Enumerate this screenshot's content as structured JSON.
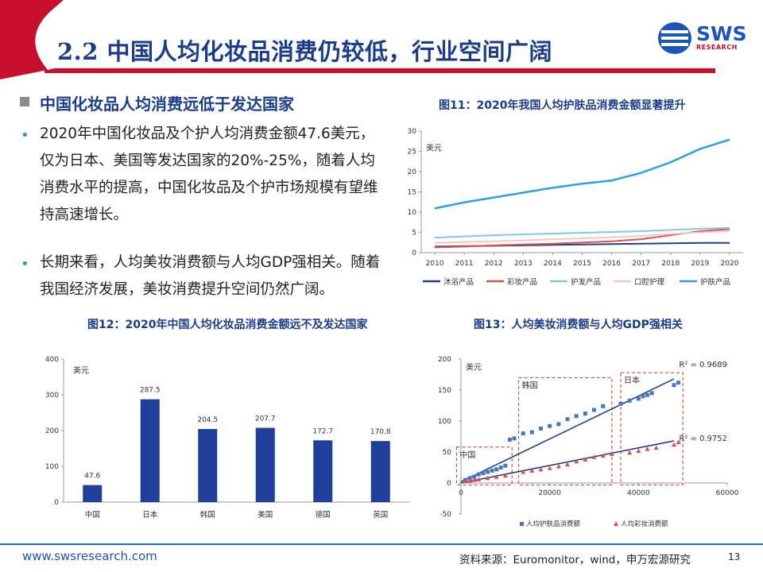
{
  "header": {
    "title": "2.2 中国人均化妆品消费仍较低，行业空间广阔",
    "logo_text": "SWS",
    "logo_sub": "RESEARCH",
    "brand_red": "#c8102e",
    "brand_blue": "#1a56b8"
  },
  "section": {
    "heading": "中国化妆品人均消费远低于发达国家",
    "bullets": [
      "2020年中国化妆品及个护人均消费金额47.6美元，仅为日本、美国等发达国家的20%-25%，随着人均消费水平的提高，中国化妆品及个护市场规模有望维持高速增长。",
      "长期来看，人均美妆消费额与人均GDP强相关。随着我国经济发展，美妆消费提升空间仍然广阔。"
    ]
  },
  "figures": {
    "fig11": "图11：2020年我国人均护肤品消费金额显著提升",
    "fig12": "图12：2020年中国人均化妆品消费金额远不及发达国家",
    "fig13": "图13：人均美妆消费额与人均GDP强相关"
  },
  "footer": {
    "url": "www.swsresearch.com",
    "source": "资料来源：Euromonitor，wind，申万宏源研究",
    "page": "13"
  },
  "chart_data": [
    {
      "id": "fig11",
      "type": "line",
      "unit_label": "美元",
      "x": [
        "2010",
        "2011",
        "2012",
        "2013",
        "2014",
        "2015",
        "2016",
        "2017",
        "2018",
        "2019",
        "2020"
      ],
      "ylim": [
        0,
        30
      ],
      "yticks": [
        0,
        5,
        10,
        15,
        20,
        25,
        30
      ],
      "legend_position": "bottom",
      "series": [
        {
          "name": "沐浴产品",
          "color": "#1f3f8f",
          "values": [
            1.5,
            1.6,
            1.7,
            1.8,
            1.9,
            2.0,
            2.1,
            2.2,
            2.3,
            2.4,
            2.4
          ]
        },
        {
          "name": "彩妆产品",
          "color": "#e0504a",
          "values": [
            1.3,
            1.5,
            1.8,
            2.0,
            2.2,
            2.5,
            2.8,
            3.3,
            4.3,
            5.3,
            5.8
          ]
        },
        {
          "name": "护发产品",
          "color": "#7ec8f0",
          "values": [
            3.7,
            4.0,
            4.3,
            4.5,
            4.7,
            4.9,
            5.1,
            5.3,
            5.6,
            5.9,
            6.1
          ]
        },
        {
          "name": "口腔护理",
          "color": "#f5c6c6",
          "values": [
            2.4,
            2.6,
            2.8,
            3.0,
            3.3,
            3.5,
            3.8,
            4.1,
            4.6,
            5.0,
            5.3
          ]
        },
        {
          "name": "护肤产品",
          "color": "#29a3e0",
          "values": [
            10.9,
            12.4,
            13.6,
            14.8,
            16.0,
            17.0,
            17.8,
            19.7,
            22.3,
            25.6,
            27.9
          ]
        }
      ]
    },
    {
      "id": "fig12",
      "type": "bar",
      "unit_label": "美元",
      "categories": [
        "中国",
        "日本",
        "韩国",
        "美国",
        "德国",
        "英国"
      ],
      "values": [
        47.6,
        287.5,
        204.5,
        207.7,
        172.7,
        170.8
      ],
      "value_labels": [
        "47.6",
        "287.5",
        "204.5",
        "207.7",
        "172.7",
        "170.8"
      ],
      "ylim": [
        0,
        400
      ],
      "yticks": [
        0,
        100,
        200,
        300,
        400
      ],
      "bar_color": "#1f3f9a"
    },
    {
      "id": "fig13",
      "type": "scatter",
      "unit_label": "美元",
      "xlim": [
        0,
        60000
      ],
      "ylim": [
        -50,
        200
      ],
      "xticks": [
        0,
        20000,
        40000,
        60000
      ],
      "yticks": [
        -50,
        0,
        50,
        100,
        150,
        200
      ],
      "region_labels": [
        "中国",
        "韩国",
        "日本"
      ],
      "r2_labels": [
        "R² = 0.9689",
        "R² = 0.9752"
      ],
      "legend_position": "bottom",
      "series": [
        {
          "name": "人均护肤品消费额",
          "color": "#4a78c0",
          "marker": "square",
          "points": [
            [
              1000,
              5
            ],
            [
              2000,
              8
            ],
            [
              3000,
              10
            ],
            [
              4000,
              14
            ],
            [
              5000,
              16
            ],
            [
              6000,
              18
            ],
            [
              7000,
              20
            ],
            [
              8000,
              22
            ],
            [
              9000,
              25
            ],
            [
              10000,
              28
            ],
            [
              11000,
              70
            ],
            [
              12000,
              72
            ],
            [
              14000,
              80
            ],
            [
              16000,
              82
            ],
            [
              18000,
              88
            ],
            [
              20000,
              92
            ],
            [
              22000,
              95
            ],
            [
              24000,
              103
            ],
            [
              26000,
              108
            ],
            [
              28000,
              112
            ],
            [
              30000,
              118
            ],
            [
              32000,
              124
            ],
            [
              36000,
              128
            ],
            [
              38000,
              133
            ],
            [
              40000,
              136
            ],
            [
              41000,
              140
            ],
            [
              42000,
              142
            ],
            [
              43000,
              145
            ],
            [
              48000,
              158
            ],
            [
              49000,
              162
            ]
          ],
          "trend": [
            [
              0,
              2
            ],
            [
              48000,
              168
            ]
          ]
        },
        {
          "name": "人均彩妆消费额",
          "color": "#e04a4a",
          "marker": "triangle",
          "points": [
            [
              1000,
              3
            ],
            [
              2000,
              4
            ],
            [
              3000,
              5
            ],
            [
              4000,
              6
            ],
            [
              6000,
              8
            ],
            [
              8000,
              10
            ],
            [
              10000,
              12
            ],
            [
              14000,
              18
            ],
            [
              16000,
              20
            ],
            [
              18000,
              22
            ],
            [
              20000,
              24
            ],
            [
              22000,
              27
            ],
            [
              24000,
              30
            ],
            [
              26000,
              35
            ],
            [
              28000,
              38
            ],
            [
              30000,
              42
            ],
            [
              32000,
              44
            ],
            [
              34000,
              47
            ],
            [
              38000,
              49
            ],
            [
              40000,
              52
            ],
            [
              42000,
              55
            ],
            [
              44000,
              57
            ],
            [
              48000,
              62
            ],
            [
              49000,
              66
            ]
          ],
          "trend": [
            [
              0,
              0
            ],
            [
              48000,
              68
            ]
          ]
        }
      ]
    }
  ]
}
